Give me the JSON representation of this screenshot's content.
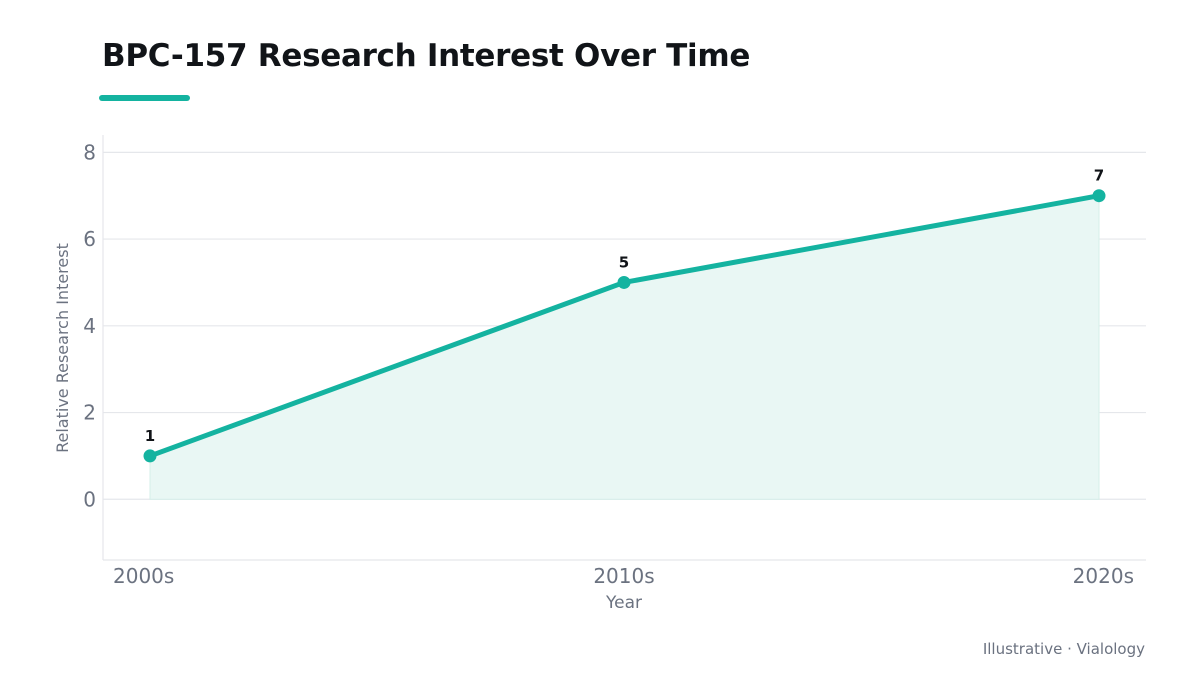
{
  "chart_data": {
    "type": "area",
    "title": "BPC-157 Research Interest Over Time",
    "xlabel": "Year",
    "ylabel": "Relative Research Interest",
    "categories": [
      "2000s",
      "2010s",
      "2020s"
    ],
    "values": [
      1,
      5,
      7
    ],
    "data_labels": [
      "1",
      "5",
      "7"
    ],
    "yticks": [
      0,
      2,
      4,
      6,
      8
    ],
    "ylim": [
      -1.4,
      8.4
    ],
    "grid": true,
    "show_markers": true,
    "line_color": "#14b3a0",
    "fill_color": "#e9f7f4",
    "legend": "none"
  },
  "footer": {
    "credit": "Illustrative · Vialology"
  },
  "colors": {
    "accent": "#14b3a0",
    "grid": "#e5e7eb",
    "axis_text": "#6b7280",
    "title_text": "#111418"
  }
}
